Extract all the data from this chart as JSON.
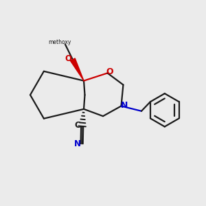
{
  "bg_color": "#ebebeb",
  "bond_color": "#1a1a1a",
  "o_color": "#cc0000",
  "n_color": "#0000cc",
  "lw": 1.6,
  "fig_w": 3.0,
  "fig_h": 3.0,
  "dpi": 100,
  "methoxy_label": "methoxy",
  "c_label": "C",
  "n_label": "N",
  "o_label": "O"
}
